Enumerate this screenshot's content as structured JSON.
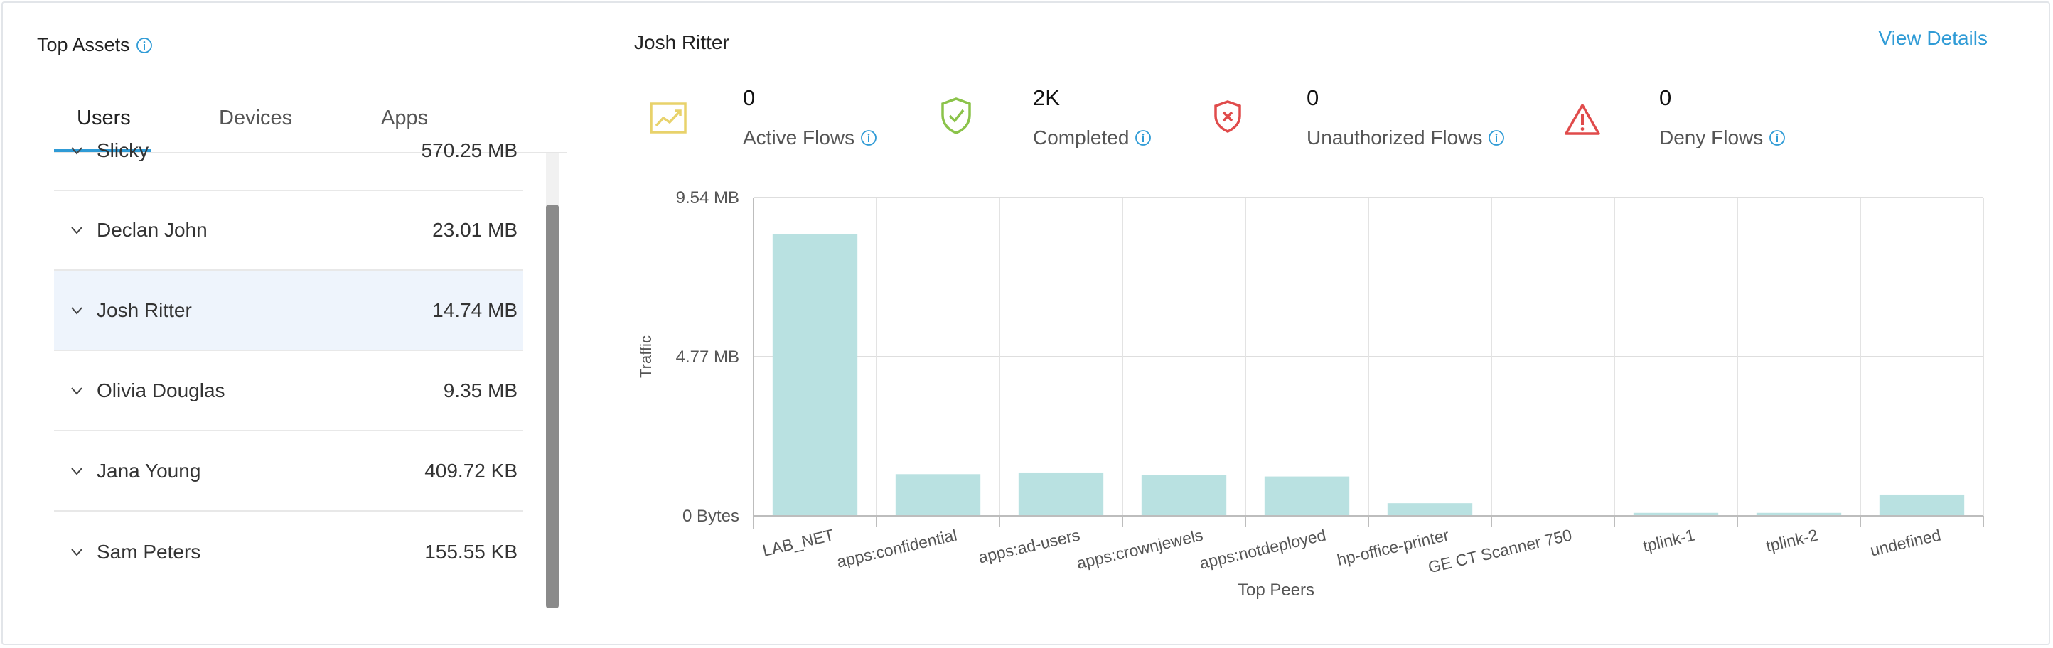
{
  "top_assets": {
    "title": "Top Assets",
    "tabs": [
      {
        "label": "Users",
        "active": true
      },
      {
        "label": "Devices",
        "active": false
      },
      {
        "label": "Apps",
        "active": false
      }
    ],
    "partial_row": {
      "name": "Slicky",
      "value": "570.25 MB"
    },
    "users": [
      {
        "name": "Declan John",
        "value": "23.01 MB",
        "selected": false
      },
      {
        "name": "Josh Ritter",
        "value": "14.74 MB",
        "selected": true
      },
      {
        "name": "Olivia Douglas",
        "value": "9.35 MB",
        "selected": false
      },
      {
        "name": "Jana Young",
        "value": "409.72 KB",
        "selected": false
      },
      {
        "name": "Sam Peters",
        "value": "155.55 KB",
        "selected": false
      }
    ]
  },
  "detail": {
    "title": "Josh Ritter",
    "view_details_label": "View Details",
    "stats": [
      {
        "value": "0",
        "label": "Active Flows",
        "icon": "trend-chart-icon",
        "color": "#e8d26b"
      },
      {
        "value": "2K",
        "label": "Completed",
        "icon": "shield-check-icon",
        "color": "#8bc34a"
      },
      {
        "value": "0",
        "label": "Unauthorized Flows",
        "icon": "shield-x-icon",
        "color": "#e04b4b"
      },
      {
        "value": "0",
        "label": "Deny Flows",
        "icon": "warning-triangle-icon",
        "color": "#e04b4b"
      }
    ]
  },
  "colors": {
    "accent": "#2f9bd6",
    "bar": "#b9e1e1",
    "selected_row": "#eef4fc"
  },
  "chart_data": {
    "type": "bar",
    "xlabel": "Top Peers",
    "ylabel": "Traffic",
    "yticks": [
      "0 Bytes",
      "4.77 MB",
      "9.54 MB"
    ],
    "ylim": [
      0,
      9.54
    ],
    "y_unit": "MB",
    "categories": [
      "LAB_NET",
      "apps:confidential",
      "apps:ad-users",
      "apps:crownjewels",
      "apps:notdeployed",
      "hp-office-printer",
      "GE CT Scanner 750",
      "tplink-1",
      "tplink-2",
      "undefined"
    ],
    "values": [
      8.45,
      1.25,
      1.3,
      1.22,
      1.18,
      0.38,
      0,
      0.09,
      0.09,
      0.64
    ],
    "grid": true,
    "legend": "none"
  }
}
